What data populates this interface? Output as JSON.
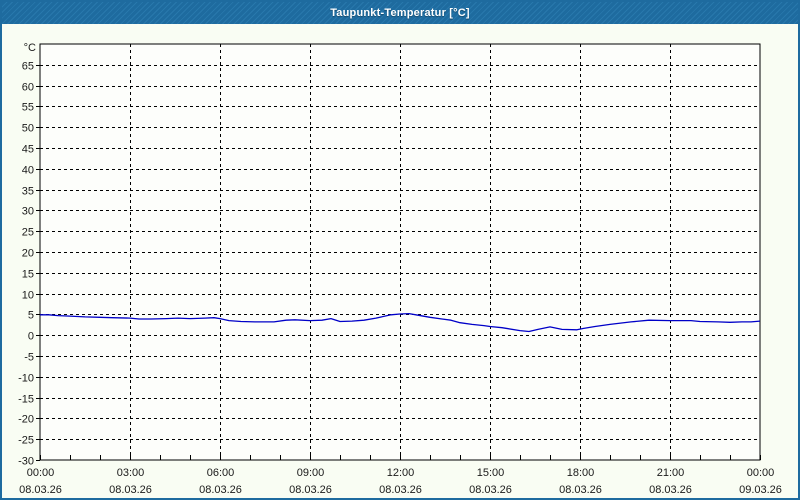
{
  "window": {
    "title": "Taupunkt-Temperatur [°C]",
    "titlebar_color": "#1e6b9f",
    "titlebar_stripe_color": "#2878ac",
    "border_color": "#1e6b9f",
    "background_color": "#f9fdf3"
  },
  "chart_data": {
    "type": "line",
    "title": "Taupunkt-Temperatur [°C]",
    "xlabel": "",
    "ylabel": "°C",
    "ylim": [
      -30,
      70
    ],
    "yticks": [
      65,
      60,
      55,
      50,
      45,
      40,
      35,
      30,
      25,
      20,
      15,
      10,
      5,
      0,
      -5,
      -10,
      -15,
      -20,
      -25,
      -30
    ],
    "xlim_hours": [
      0,
      24
    ],
    "xticks": [
      {
        "hour": 0,
        "time": "00:00",
        "date": "08.03.26"
      },
      {
        "hour": 3,
        "time": "03:00",
        "date": "08.03.26"
      },
      {
        "hour": 6,
        "time": "06:00",
        "date": "08.03.26"
      },
      {
        "hour": 9,
        "time": "09:00",
        "date": "08.03.26"
      },
      {
        "hour": 12,
        "time": "12:00",
        "date": "08.03.26"
      },
      {
        "hour": 15,
        "time": "15:00",
        "date": "08.03.26"
      },
      {
        "hour": 18,
        "time": "18:00",
        "date": "08.03.26"
      },
      {
        "hour": 21,
        "time": "21:00",
        "date": "08.03.26"
      },
      {
        "hour": 24,
        "time": "00:00",
        "date": "09.03.26"
      }
    ],
    "minor_x_tick_hours": 1,
    "grid": "dashed",
    "axis_color": "#000000",
    "grid_color": "#000000",
    "plot_background": "#fdfefb",
    "text_color": "#1a1a1a",
    "series": [
      {
        "name": "Taupunkt",
        "color": "#0000c8",
        "points": [
          [
            0.0,
            4.9
          ],
          [
            0.3,
            4.9
          ],
          [
            0.6,
            4.7
          ],
          [
            1.0,
            4.6
          ],
          [
            1.5,
            4.4
          ],
          [
            2.0,
            4.3
          ],
          [
            2.4,
            4.2
          ],
          [
            3.0,
            4.1
          ],
          [
            3.3,
            3.9
          ],
          [
            3.7,
            3.9
          ],
          [
            4.2,
            4.0
          ],
          [
            4.6,
            4.1
          ],
          [
            5.0,
            4.0
          ],
          [
            5.5,
            4.1
          ],
          [
            5.8,
            4.2
          ],
          [
            6.0,
            4.0
          ],
          [
            6.3,
            3.5
          ],
          [
            6.7,
            3.3
          ],
          [
            7.2,
            3.2
          ],
          [
            7.8,
            3.2
          ],
          [
            8.2,
            3.6
          ],
          [
            8.5,
            3.7
          ],
          [
            9.0,
            3.5
          ],
          [
            9.4,
            3.6
          ],
          [
            9.7,
            4.0
          ],
          [
            10.0,
            3.3
          ],
          [
            10.4,
            3.4
          ],
          [
            10.8,
            3.6
          ],
          [
            11.2,
            4.1
          ],
          [
            11.7,
            4.9
          ],
          [
            12.0,
            5.1
          ],
          [
            12.3,
            5.2
          ],
          [
            12.6,
            4.8
          ],
          [
            13.0,
            4.3
          ],
          [
            13.4,
            3.9
          ],
          [
            13.7,
            3.6
          ],
          [
            14.0,
            3.0
          ],
          [
            14.4,
            2.6
          ],
          [
            14.8,
            2.3
          ],
          [
            15.0,
            2.1
          ],
          [
            15.4,
            1.8
          ],
          [
            16.0,
            1.1
          ],
          [
            16.3,
            0.9
          ],
          [
            16.6,
            1.4
          ],
          [
            17.0,
            2.0
          ],
          [
            17.4,
            1.4
          ],
          [
            17.9,
            1.3
          ],
          [
            18.1,
            1.6
          ],
          [
            18.5,
            2.1
          ],
          [
            19.0,
            2.6
          ],
          [
            19.7,
            3.2
          ],
          [
            20.3,
            3.6
          ],
          [
            21.0,
            3.5
          ],
          [
            21.7,
            3.5
          ],
          [
            22.0,
            3.3
          ],
          [
            22.6,
            3.2
          ],
          [
            23.0,
            3.1
          ],
          [
            23.4,
            3.2
          ],
          [
            23.7,
            3.2
          ],
          [
            24.0,
            3.4
          ]
        ]
      }
    ]
  }
}
